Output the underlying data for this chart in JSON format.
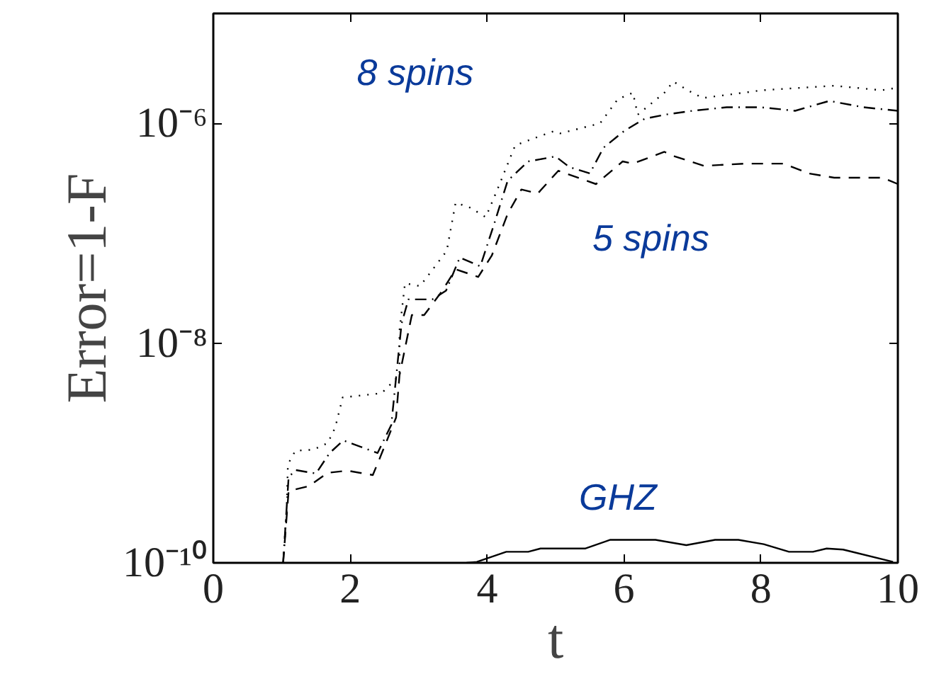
{
  "chart_data": {
    "type": "line",
    "xlabel": "t",
    "ylabel": "Error=1-F",
    "log": "y",
    "grid": false,
    "marker": "none",
    "xlim": [
      0,
      10
    ],
    "xticks": [
      0,
      2,
      4,
      6,
      8,
      10
    ],
    "ylim": [
      1e-10,
      1e-05
    ],
    "yticks": [
      {
        "value": 1e-10,
        "label": "10⁻¹⁰"
      },
      {
        "value": 1e-08,
        "label": "10⁻⁸"
      },
      {
        "value": 1e-06,
        "label": "10⁻⁶"
      }
    ],
    "annotations": [
      "8 spins",
      "5 spins",
      "GHZ"
    ],
    "series": [
      {
        "color": "#000000",
        "line_style": "dotted",
        "x": [
          1.02,
          1.07,
          1.09,
          1.2,
          1.46,
          1.67,
          1.78,
          1.89,
          2.46,
          2.72,
          2.72,
          2.8,
          3.02,
          3.41,
          3.54,
          3.76,
          3.98,
          4.15,
          4.41,
          4.76,
          4.98,
          5.07,
          5.65,
          5.91,
          6.13,
          6.2,
          6.59,
          6.72,
          6.93,
          7.15,
          8.02,
          9.07,
          9.76,
          9.98
        ],
        "values": [
          1e-10,
          2.9e-10,
          7.9e-10,
          1.05e-09,
          1.07e-09,
          1.23e-09,
          1.7e-09,
          3.2e-09,
          3.5e-09,
          5.1e-09,
          1.3e-08,
          3.5e-08,
          3.3e-08,
          6.9e-08,
          1.9e-07,
          1.7e-07,
          1.4e-07,
          2.5e-07,
          6.3e-07,
          7.6e-07,
          8.5e-07,
          8.1e-07,
          1e-06,
          1.66e-06,
          1.9e-06,
          1.2e-06,
          1.9e-06,
          2.4e-06,
          2e-06,
          1.7e-06,
          2e-06,
          2.2e-06,
          2e-06,
          2.1e-06
        ]
      },
      {
        "color": "#000000",
        "line_style": "dashdot",
        "x": [
          1.02,
          1.1,
          1.2,
          1.5,
          1.7,
          1.9,
          2.4,
          2.6,
          2.75,
          2.85,
          3.2,
          3.4,
          3.6,
          3.9,
          4.1,
          4.3,
          4.6,
          5.0,
          5.2,
          5.5,
          5.7,
          6.0,
          6.3,
          6.6,
          7.0,
          7.5,
          8.0,
          8.5,
          9.0,
          9.5,
          10
        ],
        "values": [
          1e-10,
          6e-10,
          7e-10,
          6.5e-10,
          1e-09,
          1.3e-09,
          1e-09,
          1.8e-09,
          1.5e-08,
          2.5e-08,
          2.5e-08,
          3e-08,
          6e-08,
          5e-08,
          1.2e-07,
          3e-07,
          4.5e-07,
          5e-07,
          4e-07,
          3.5e-07,
          6e-07,
          8.5e-07,
          1.1e-06,
          1.2e-06,
          1.3e-06,
          1.4e-06,
          1.4e-06,
          1.3e-06,
          1.6e-06,
          1.4e-06,
          1.3e-06
        ]
      },
      {
        "color": "#000000",
        "line_style": "dashed",
        "x": [
          1.02,
          1.1,
          1.4,
          1.67,
          1.96,
          2.33,
          2.43,
          2.67,
          2.72,
          2.9,
          3.08,
          3.33,
          3.54,
          3.87,
          4.07,
          4.3,
          4.5,
          4.74,
          5.04,
          5.59,
          5.98,
          6.13,
          6.59,
          6.74,
          7.17,
          7.76,
          8.33,
          8.7,
          9.07,
          9.78,
          10
        ],
        "values": [
          1e-10,
          4.5e-10,
          5e-10,
          6.6e-10,
          6.9e-10,
          6.3e-10,
          8.9e-10,
          2.1e-09,
          5.1e-09,
          1.8e-08,
          1.8e-08,
          2.9e-08,
          4.7e-08,
          4e-08,
          6.3e-08,
          1.5e-07,
          2.5e-07,
          2.3e-07,
          3.7e-07,
          2.8e-07,
          4.5e-07,
          4.3e-07,
          5.5e-07,
          5e-07,
          4.1e-07,
          4.3e-07,
          4.3e-07,
          3.5e-07,
          3.2e-07,
          3.2e-07,
          2.8e-07
        ]
      },
      {
        "color": "#000000",
        "line_style": "solid",
        "x": [
          3.7,
          3.85,
          4.28,
          4.6,
          4.78,
          5.43,
          5.8,
          6.46,
          6.91,
          7.33,
          7.67,
          8.04,
          8.41,
          8.76,
          8.96,
          9.2,
          9.93
        ],
        "values": [
          1e-10,
          1.02e-10,
          1.26e-10,
          1.26e-10,
          1.35e-10,
          1.35e-10,
          1.62e-10,
          1.62e-10,
          1.45e-10,
          1.62e-10,
          1.62e-10,
          1.48e-10,
          1.26e-10,
          1.26e-10,
          1.35e-10,
          1.32e-10,
          1.02e-10
        ]
      }
    ]
  }
}
